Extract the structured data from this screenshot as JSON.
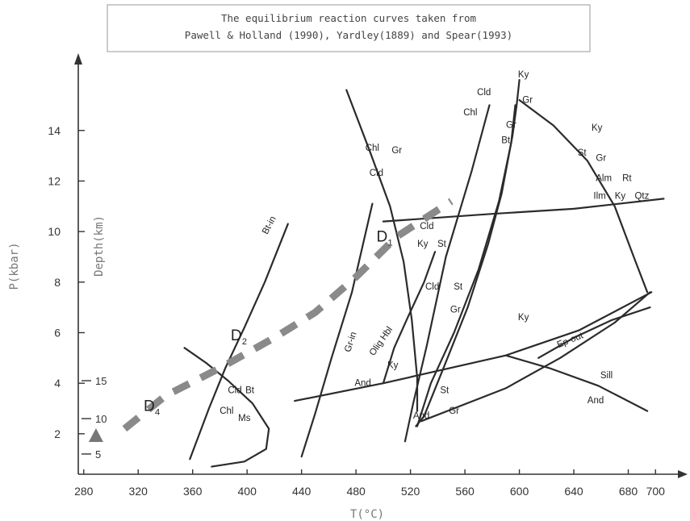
{
  "chart_data": {
    "type": "line",
    "title": "The equilibrium reaction curves taken from",
    "subtitle": "Pawell & Holland (1990), Yardley(1889) and Spear(1993)",
    "xlabel": "T(°C)",
    "ylabel": "P(kbar)",
    "ylabel_secondary": "Depth(km)",
    "xlim": [
      276,
      720
    ],
    "ylim": [
      0.4,
      16.8
    ],
    "x_ticks": [
      "280",
      "320",
      "360",
      "400",
      "440",
      "480",
      "520",
      "560",
      "600",
      "640",
      "680",
      "700"
    ],
    "x_tick_values": [
      280,
      320,
      360,
      400,
      440,
      480,
      520,
      560,
      600,
      640,
      680,
      700
    ],
    "y_ticks": [
      "2",
      "4",
      "6",
      "8",
      "10",
      "12",
      "14"
    ],
    "y_tick_values": [
      2,
      4,
      6,
      8,
      10,
      12,
      14
    ],
    "depth_ticks": [
      "5",
      "10",
      "15"
    ],
    "depth_tick_pressures": [
      1.2,
      2.6,
      4.1
    ],
    "series": [
      {
        "points": [
          [
            358,
            1.0
          ],
          [
            372,
            3.0
          ],
          [
            384,
            4.6
          ],
          [
            398,
            6.2
          ],
          [
            413,
            8.0
          ],
          [
            430,
            10.3
          ]
        ]
      },
      {
        "points": [
          [
            354,
            5.4
          ],
          [
            370,
            4.8
          ],
          [
            386,
            4.1
          ],
          [
            404,
            3.2
          ],
          [
            416,
            2.2
          ],
          [
            414,
            1.4
          ],
          [
            398,
            0.9
          ],
          [
            374,
            0.7
          ]
        ]
      },
      {
        "points": [
          [
            440,
            1.1
          ],
          [
            450,
            2.8
          ],
          [
            462,
            5.0
          ],
          [
            477,
            7.6
          ],
          [
            492,
            11.1
          ]
        ]
      },
      {
        "points": [
          [
            473,
            15.6
          ],
          [
            490,
            13.2
          ],
          [
            505,
            11.0
          ],
          [
            515,
            8.8
          ],
          [
            521,
            6.5
          ],
          [
            525,
            4.2
          ],
          [
            525,
            2.9
          ]
        ]
      },
      {
        "points": [
          [
            516,
            1.7
          ],
          [
            522,
            3.2
          ],
          [
            532,
            5.5
          ],
          [
            546,
            9.0
          ],
          [
            565,
            12.4
          ],
          [
            578,
            15.0
          ]
        ]
      },
      {
        "points": [
          [
            597,
            15.0
          ],
          [
            594,
            13.5
          ],
          [
            585,
            11.2
          ],
          [
            570,
            8.5
          ],
          [
            552,
            6.0
          ],
          [
            535,
            4.0
          ],
          [
            525,
            2.3
          ]
        ]
      },
      {
        "points": [
          [
            600,
            16.0
          ],
          [
            598,
            15.0
          ],
          [
            595,
            13.8
          ],
          [
            587,
            11.5
          ],
          [
            577,
            9.5
          ],
          [
            562,
            7.0
          ],
          [
            545,
            4.7
          ],
          [
            530,
            2.7
          ],
          [
            524,
            2.3
          ]
        ]
      },
      {
        "points": [
          [
            600,
            15.2
          ],
          [
            625,
            14.2
          ],
          [
            650,
            12.8
          ],
          [
            670,
            11.0
          ],
          [
            684,
            9.0
          ],
          [
            694,
            7.6
          ]
        ]
      },
      {
        "points": [
          [
            500,
            10.4
          ],
          [
            580,
            10.7
          ],
          [
            640,
            10.9
          ],
          [
            706,
            11.3
          ]
        ]
      },
      {
        "points": [
          [
            435,
            3.3
          ],
          [
            500,
            4.0
          ],
          [
            590,
            5.1
          ],
          [
            644,
            6.1
          ],
          [
            697,
            7.6
          ]
        ]
      },
      {
        "points": [
          [
            500,
            4.0
          ],
          [
            508,
            5.4
          ],
          [
            518,
            6.6
          ],
          [
            530,
            8.0
          ],
          [
            538,
            9.2
          ]
        ]
      },
      {
        "points": [
          [
            528,
            2.5
          ],
          [
            590,
            3.8
          ],
          [
            630,
            5.0
          ],
          [
            670,
            6.4
          ],
          [
            696,
            7.6
          ]
        ]
      },
      {
        "points": [
          [
            614,
            5.0
          ],
          [
            640,
            5.8
          ],
          [
            668,
            6.5
          ],
          [
            696,
            7.0
          ]
        ]
      },
      {
        "points": [
          [
            590,
            5.1
          ],
          [
            622,
            4.6
          ],
          [
            658,
            3.9
          ],
          [
            694,
            2.9
          ]
        ]
      }
    ],
    "annotations": [
      {
        "text": "Ky",
        "x": 603,
        "y": 16.1
      },
      {
        "text": "Cld",
        "x": 574,
        "y": 15.4
      },
      {
        "text": "Gr",
        "x": 606,
        "y": 15.1
      },
      {
        "text": "Chl",
        "x": 564,
        "y": 14.6
      },
      {
        "text": "Gr",
        "x": 594,
        "y": 14.1
      },
      {
        "text": "Bt",
        "x": 590,
        "y": 13.5
      },
      {
        "text": "Ky",
        "x": 657,
        "y": 14.0
      },
      {
        "text": "St",
        "x": 646,
        "y": 13.0
      },
      {
        "text": "Gr",
        "x": 660,
        "y": 12.8
      },
      {
        "text": "Chl",
        "x": 492,
        "y": 13.2
      },
      {
        "text": "Gr",
        "x": 510,
        "y": 13.1
      },
      {
        "text": "Cld",
        "x": 495,
        "y": 12.2
      },
      {
        "text": "Alm",
        "x": 662,
        "y": 12.0
      },
      {
        "text": "Rt",
        "x": 679,
        "y": 12.0
      },
      {
        "text": "Ilm",
        "x": 659,
        "y": 11.3
      },
      {
        "text": "Ky",
        "x": 674,
        "y": 11.3
      },
      {
        "text": "Qtz",
        "x": 690,
        "y": 11.3
      },
      {
        "text": "Bt-in",
        "x": 418,
        "y": 10.2
      },
      {
        "text": "Cld",
        "x": 532,
        "y": 10.1
      },
      {
        "text": "Ky",
        "x": 529,
        "y": 9.4
      },
      {
        "text": "St",
        "x": 543,
        "y": 9.4
      },
      {
        "text": "Cld",
        "x": 536,
        "y": 7.7
      },
      {
        "text": "St",
        "x": 555,
        "y": 7.7
      },
      {
        "text": "Gr",
        "x": 553,
        "y": 6.8
      },
      {
        "text": "Ky",
        "x": 603,
        "y": 6.5
      },
      {
        "text": "Ep-out",
        "x": 638,
        "y": 5.6
      },
      {
        "text": "Gr-in",
        "x": 478,
        "y": 5.6
      },
      {
        "text": "Olig Hbl",
        "x": 500,
        "y": 5.6
      },
      {
        "text": "Ky",
        "x": 507,
        "y": 4.6
      },
      {
        "text": "And",
        "x": 485,
        "y": 3.9
      },
      {
        "text": "Sill",
        "x": 664,
        "y": 4.2
      },
      {
        "text": "St",
        "x": 545,
        "y": 3.6
      },
      {
        "text": "And",
        "x": 528,
        "y": 2.6
      },
      {
        "text": "Gr",
        "x": 552,
        "y": 2.8
      },
      {
        "text": "And",
        "x": 656,
        "y": 3.2
      },
      {
        "text": "Cld",
        "x": 391,
        "y": 3.6
      },
      {
        "text": "Bt",
        "x": 402,
        "y": 3.6
      },
      {
        "text": "Chl",
        "x": 385,
        "y": 2.8
      },
      {
        "text": "Ms",
        "x": 398,
        "y": 2.5
      }
    ],
    "pt_path": {
      "points": [
        [
          310,
          2.2
        ],
        [
          340,
          3.5
        ],
        [
          380,
          4.6
        ],
        [
          420,
          5.8
        ],
        [
          450,
          6.8
        ],
        [
          480,
          8.2
        ],
        [
          510,
          9.8
        ],
        [
          550,
          11.2
        ]
      ],
      "color": "#8a8a8a"
    },
    "path_labels": [
      {
        "label": "D",
        "sub": "4",
        "x": 324,
        "y": 2.9
      },
      {
        "label": "D",
        "sub": "2",
        "x": 388,
        "y": 5.7
      },
      {
        "label": "D",
        "sub": "1",
        "x": 495,
        "y": 9.6
      }
    ],
    "marker": {
      "shape": "triangle",
      "x": 289,
      "y": 1.9,
      "color": "#777777"
    },
    "grid": false,
    "legend": "none"
  }
}
